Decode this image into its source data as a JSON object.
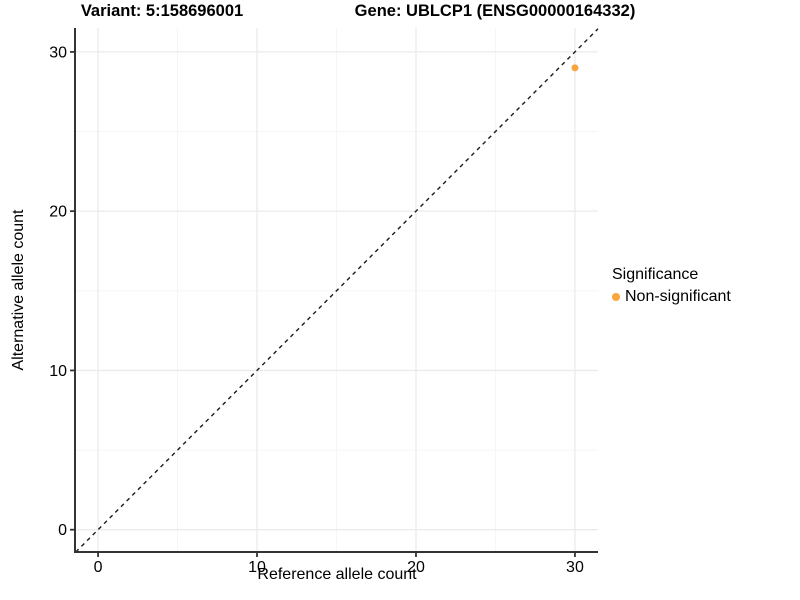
{
  "header": {
    "variant_title": "Variant: 5:158696001",
    "gene_title": "Gene: UBLCP1 (ENSG00000164332)"
  },
  "chart_data": {
    "type": "scatter",
    "title": "Variant: 5:158696001 — Gene: UBLCP1 (ENSG00000164332)",
    "xlabel": "Reference allele count",
    "ylabel": "Alternative allele count",
    "xlim": [
      -1.45,
      31.45
    ],
    "ylim": [
      -1.4,
      31.5
    ],
    "xticks": [
      "0",
      "10",
      "20",
      "30"
    ],
    "xtick_values": [
      0,
      10,
      20,
      30
    ],
    "xticks_minor": [
      5,
      15,
      25
    ],
    "yticks": [
      "0",
      "10",
      "20",
      "30"
    ],
    "ytick_values": [
      0,
      10,
      20,
      30
    ],
    "yticks_minor": [
      5,
      15,
      25
    ],
    "grid": "major+minor",
    "diagonal_line": {
      "style": "dashed",
      "from": [
        -1.4,
        -1.4
      ],
      "to": [
        31.45,
        31.45
      ],
      "color": "#1a1a1a"
    },
    "series": [
      {
        "name": "Non-significant",
        "color": "#FAA43C",
        "points": [
          {
            "x": 30,
            "y": 29
          }
        ]
      }
    ],
    "legend": {
      "title": "Significance",
      "position": "right",
      "entries": [
        {
          "label": "Non-significant",
          "color": "#FAA43C"
        }
      ]
    }
  },
  "colors": {
    "background": "#ffffff",
    "axis_line": "#333333",
    "grid_major": "#ebebeb",
    "grid_minor": "#f5f5f5",
    "tick_text": "#000000",
    "point_orange": "#FAA43C"
  }
}
